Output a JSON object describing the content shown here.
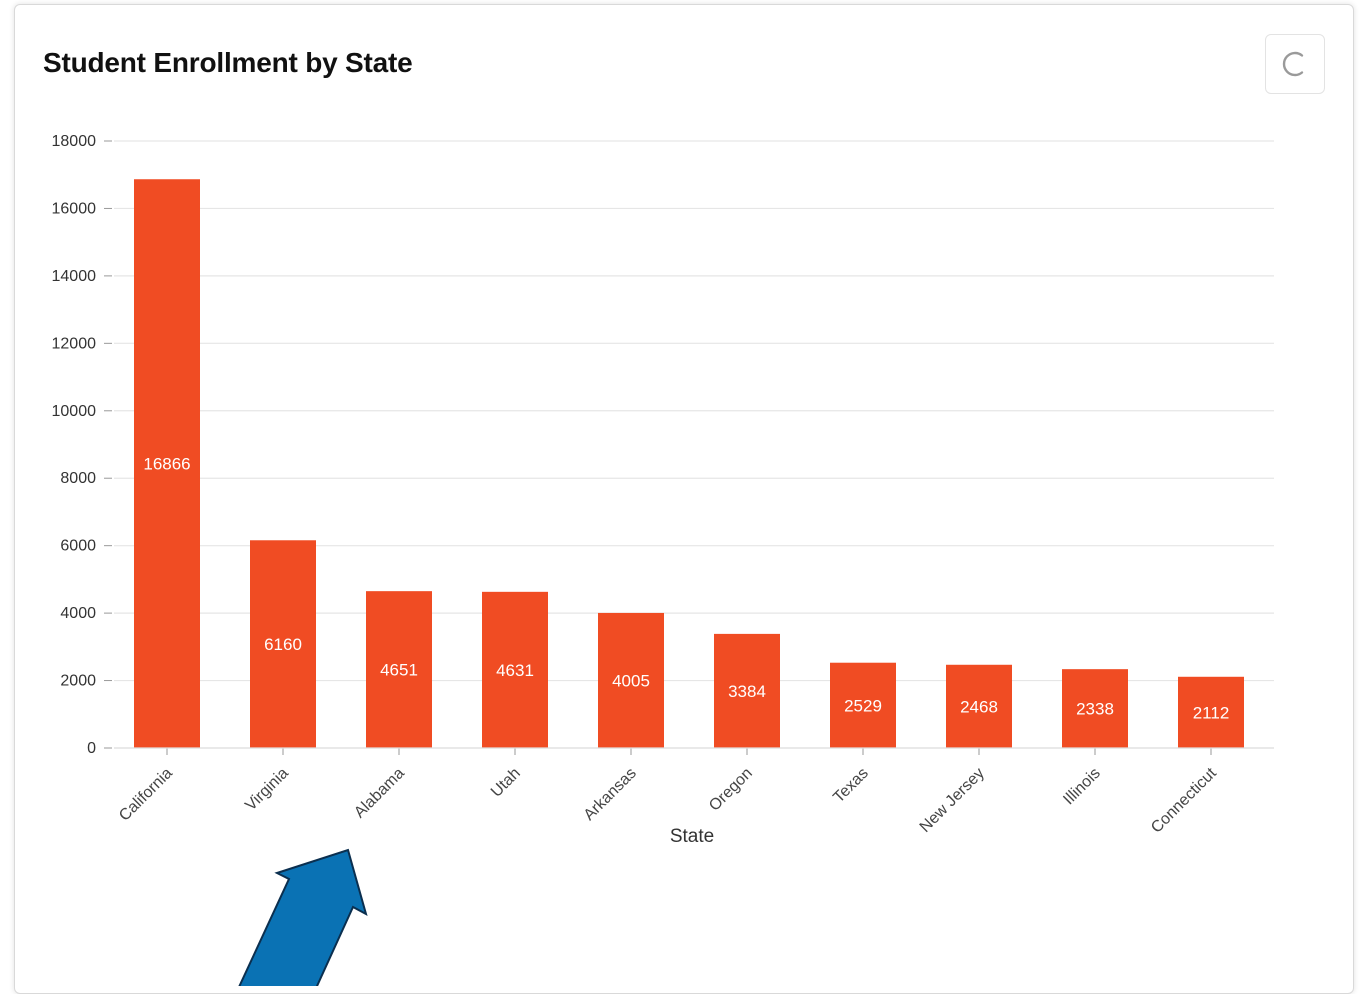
{
  "card": {
    "title": "Student Enrollment by State",
    "refresh_icon": "refresh-spinner-icon"
  },
  "annotation": {
    "arrow_icon": "pointer-arrow-icon",
    "color": "#0a72b4"
  },
  "chart_data": {
    "type": "bar",
    "xlabel": "State",
    "ylabel": "",
    "ylim": [
      0,
      18000
    ],
    "yticks": [
      0,
      2000,
      4000,
      6000,
      8000,
      10000,
      12000,
      14000,
      16000,
      18000
    ],
    "grid": true,
    "bar_color": "#f04c23",
    "categories": [
      "California",
      "Virginia",
      "Alabama",
      "Utah",
      "Arkansas",
      "Oregon",
      "Texas",
      "New Jersey",
      "Illinois",
      "Connecticut"
    ],
    "values": [
      16866,
      6160,
      4651,
      4631,
      4005,
      3384,
      2529,
      2468,
      2338,
      2112
    ]
  }
}
